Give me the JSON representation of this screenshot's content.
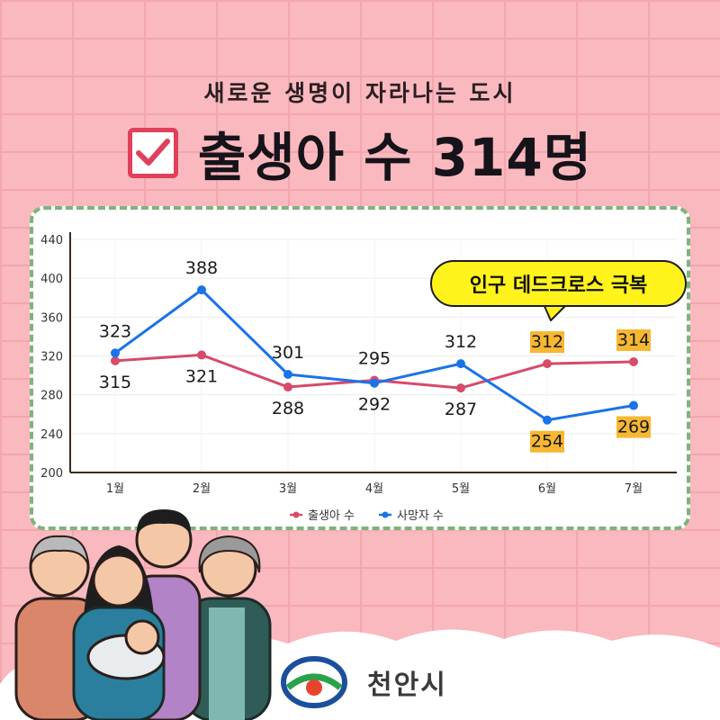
{
  "header": {
    "subtitle": "새로운 생명이 자라나는 도시",
    "headline": "출생아 수 314명"
  },
  "callout": {
    "text": "인구 데드크로스 극복"
  },
  "brand": {
    "name": "천안시"
  },
  "colors": {
    "births": "#d64a6b",
    "deaths": "#1a73e8",
    "highlight": "#f7b731",
    "callout": "#fff31b",
    "card_border": "#7fb37a"
  },
  "chart_data": {
    "type": "line",
    "categories": [
      "1월",
      "2월",
      "3월",
      "4월",
      "5월",
      "6월",
      "7월"
    ],
    "ylim": [
      200,
      440
    ],
    "yticks": [
      200,
      240,
      280,
      320,
      360,
      400,
      440
    ],
    "grid": true,
    "legend": "bottom",
    "highlighted_categories": [
      "6월",
      "7월"
    ],
    "series": [
      {
        "name": "출생아 수",
        "values": [
          315,
          321,
          288,
          295,
          287,
          312,
          314
        ]
      },
      {
        "name": "사망자 수",
        "values": [
          323,
          388,
          301,
          292,
          312,
          254,
          269
        ]
      }
    ]
  }
}
